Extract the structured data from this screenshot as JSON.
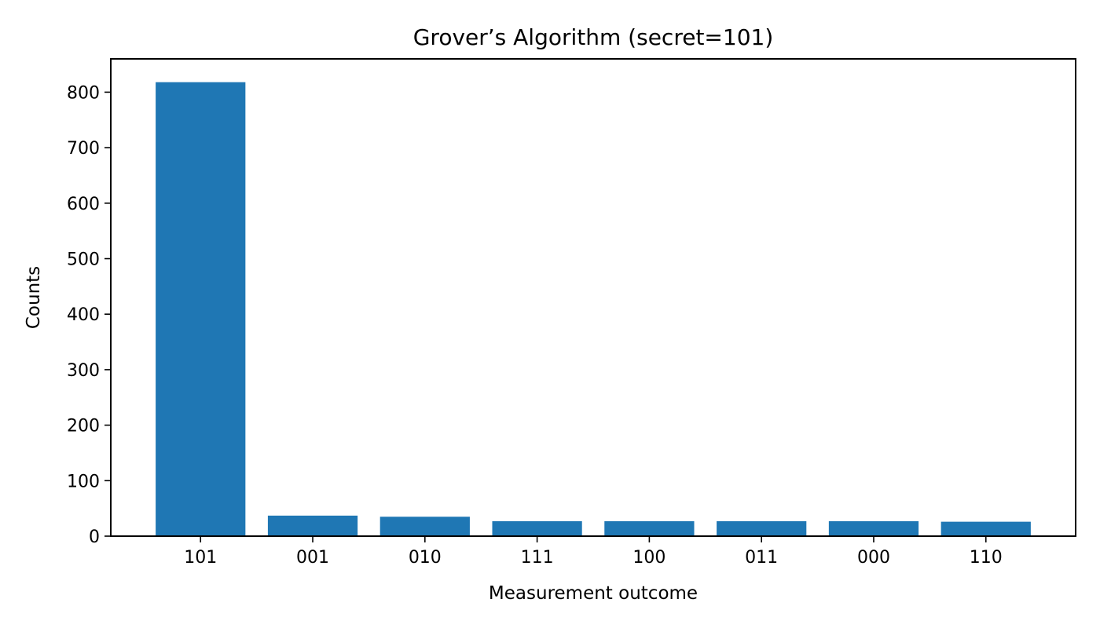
{
  "chart_data": {
    "type": "bar",
    "title": "Grover’s Algorithm (secret=101)",
    "xlabel": "Measurement outcome",
    "ylabel": "Counts",
    "categories": [
      "101",
      "001",
      "010",
      "111",
      "100",
      "011",
      "000",
      "110"
    ],
    "values": [
      818,
      37,
      35,
      27,
      27,
      27,
      27,
      26
    ],
    "ylim": [
      0,
      860
    ],
    "yticks": [
      0,
      100,
      200,
      300,
      400,
      500,
      600,
      700,
      800
    ],
    "grid": false,
    "bar_color": "#1f77b4"
  }
}
